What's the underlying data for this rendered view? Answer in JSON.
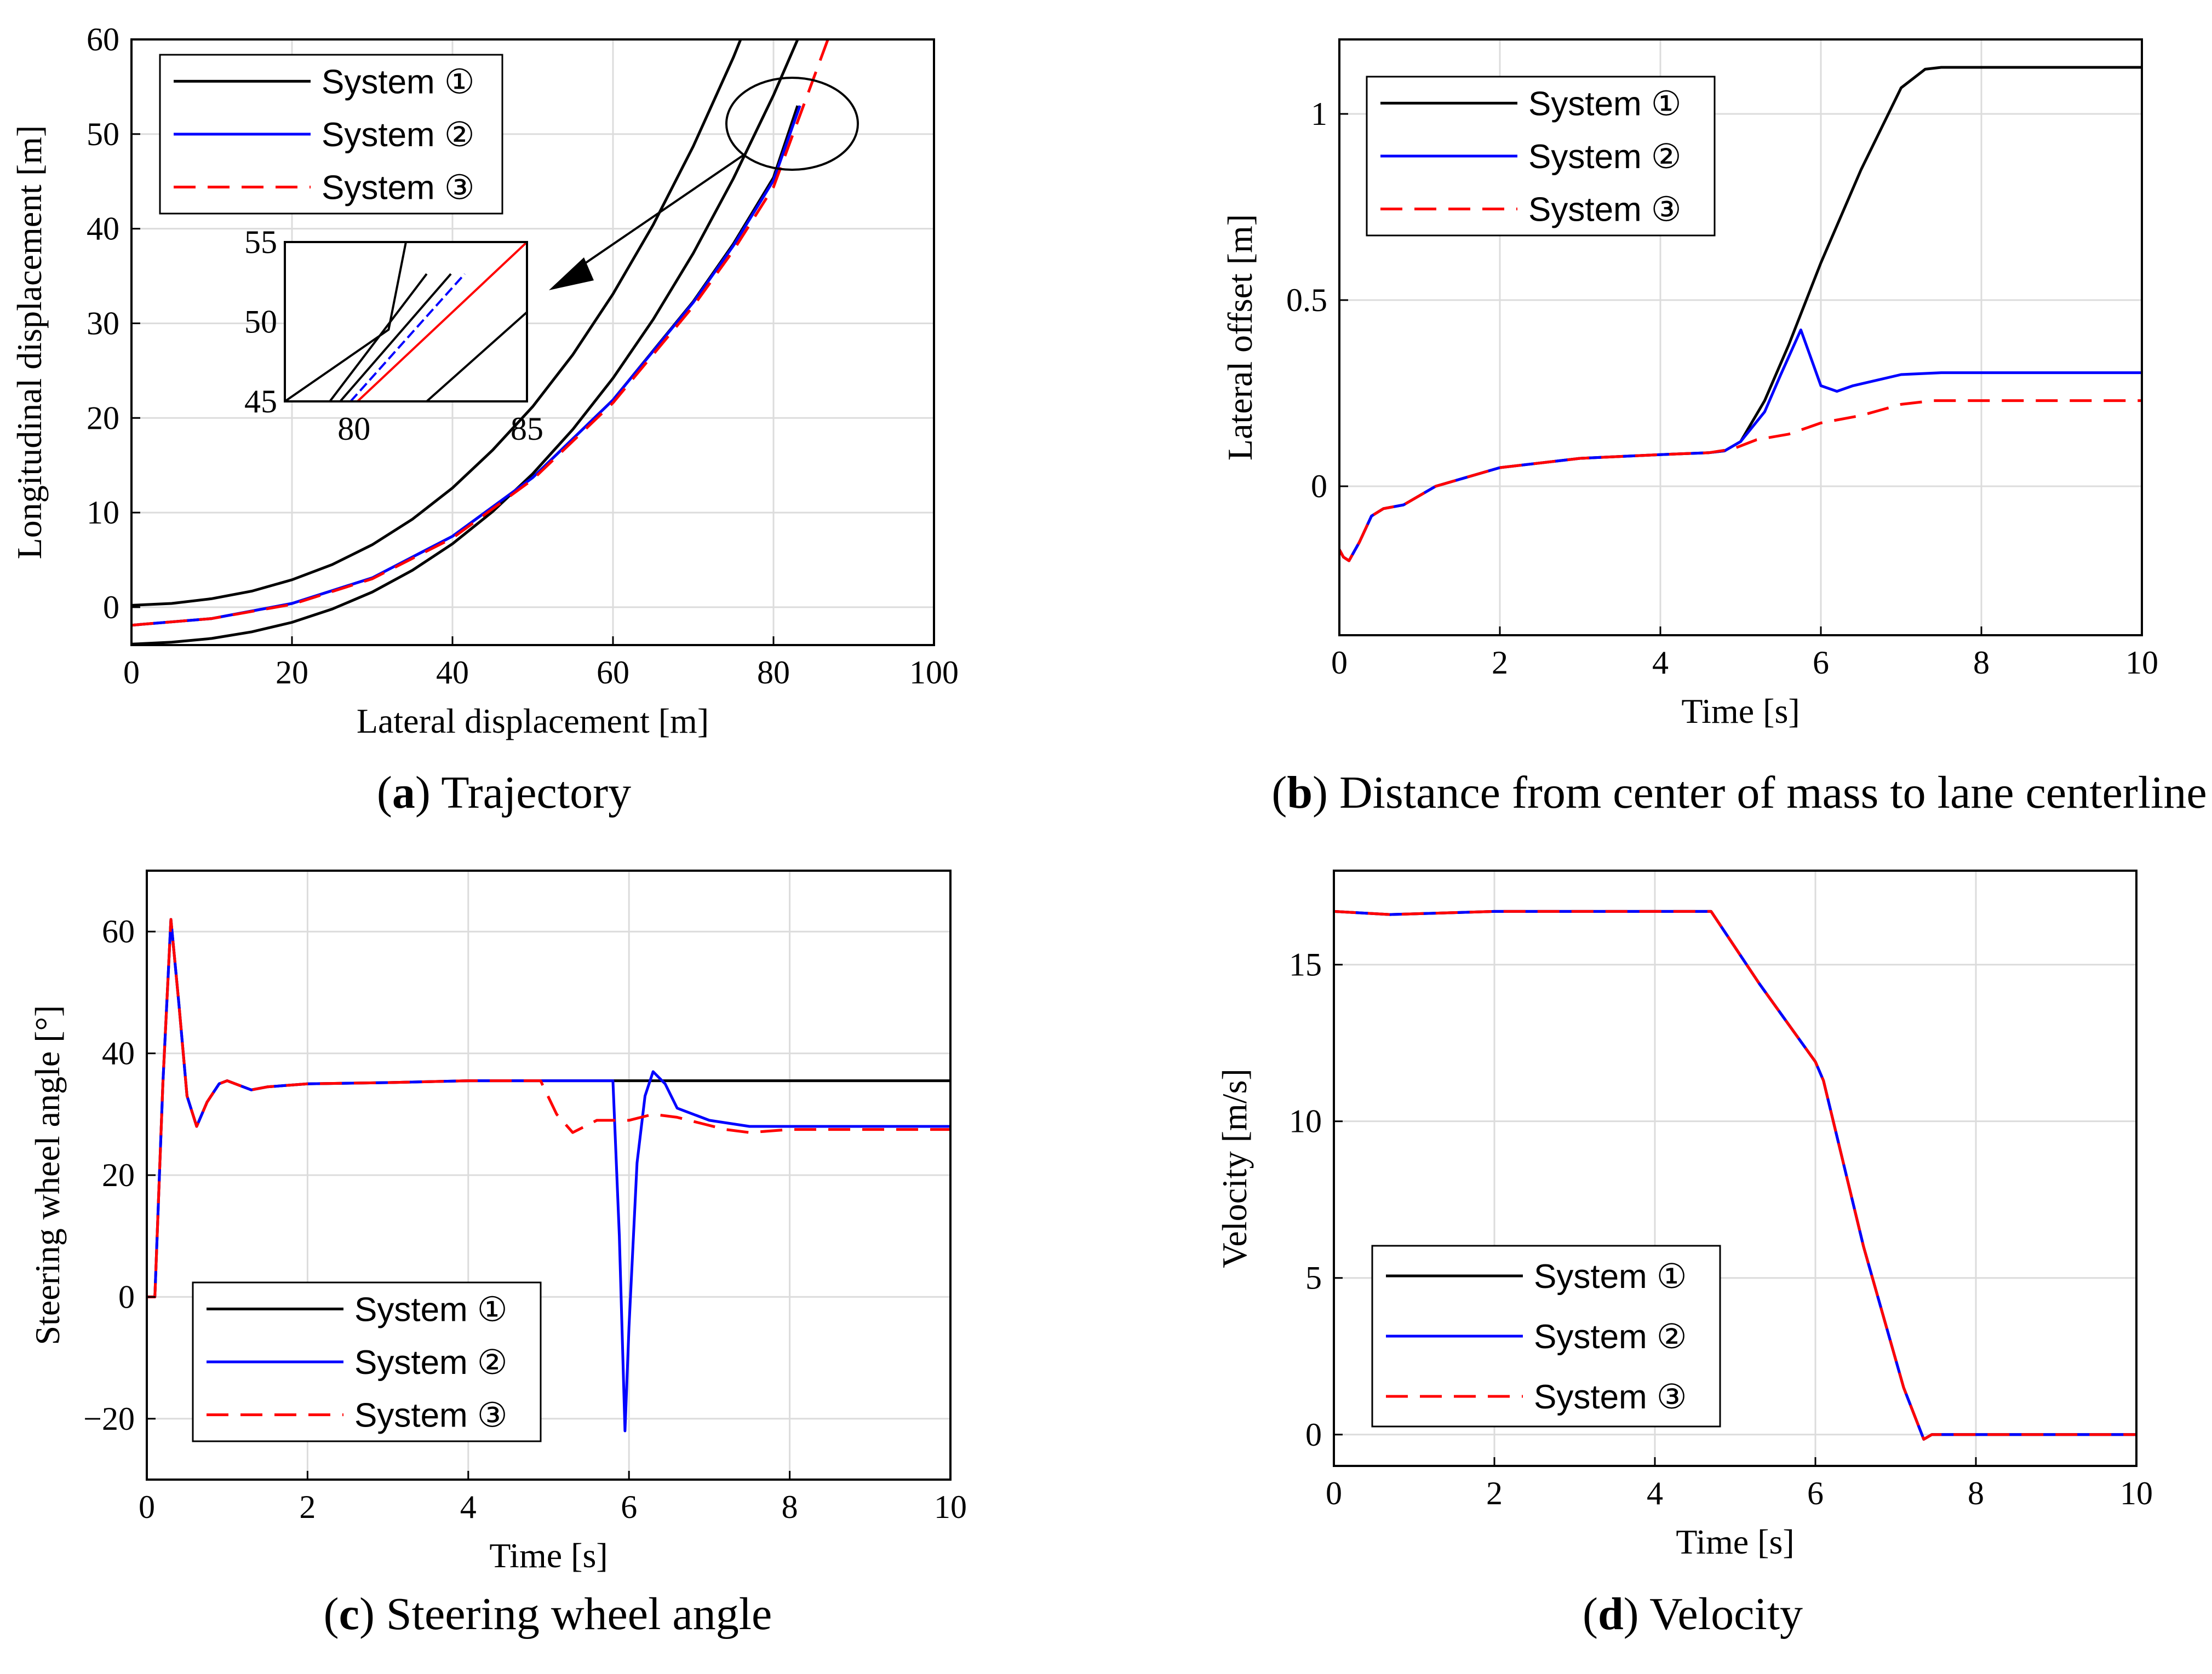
{
  "colors": {
    "system1": "#000000",
    "system2": "#0000ff",
    "system3": "#ff0000",
    "grid": "#dcdcdc"
  },
  "legend_entries": [
    "System ①",
    "System ②",
    "System ③"
  ],
  "chart_data": [
    {
      "id": "a",
      "type": "line",
      "caption_letter": "a",
      "caption_text": "Trajectory",
      "xlabel": "Lateral displacement [m]",
      "ylabel": "Longitudinal displacement [m]",
      "xlim": [
        0,
        100
      ],
      "ylim": [
        -4,
        60
      ],
      "xticks": [
        0,
        20,
        40,
        60,
        80,
        100
      ],
      "yticks": [
        0,
        10,
        20,
        30,
        40,
        50,
        60
      ],
      "grid": true,
      "legend_position": "top-left",
      "lane_boundaries": [
        {
          "name": "lane-left-edge",
          "x": [
            0,
            5,
            10,
            15,
            20,
            25,
            30,
            35,
            40,
            45,
            50,
            55,
            60,
            65,
            70,
            75,
            80,
            85
          ],
          "y": [
            0.2,
            0.4,
            0.9,
            1.7,
            2.9,
            4.5,
            6.6,
            9.3,
            12.6,
            16.6,
            21.2,
            26.7,
            33.1,
            40.4,
            48.7,
            58.1,
            68.6,
            80.3
          ]
        },
        {
          "name": "lane-right-edge",
          "x": [
            0,
            5,
            10,
            15,
            20,
            25,
            30,
            35,
            40,
            45,
            50,
            55,
            60,
            65,
            70,
            75,
            80,
            85,
            90
          ],
          "y": [
            -3.9,
            -3.7,
            -3.3,
            -2.6,
            -1.6,
            -0.2,
            1.6,
            3.9,
            6.7,
            10.1,
            14.1,
            18.8,
            24.2,
            30.4,
            37.4,
            45.3,
            54.1,
            63.9,
            74.7
          ]
        }
      ],
      "series": [
        {
          "name": "System ①",
          "x": [
            0,
            10,
            20,
            30,
            40,
            50,
            60,
            70,
            75,
            80,
            83
          ],
          "y": [
            -1.9,
            -1.2,
            0.4,
            3.1,
            7.5,
            13.7,
            21.9,
            32.3,
            38.4,
            45.4,
            53.0
          ]
        },
        {
          "name": "System ②",
          "x": [
            0,
            10,
            20,
            30,
            40,
            50,
            60,
            70,
            75,
            80,
            83.3
          ],
          "y": [
            -1.9,
            -1.2,
            0.4,
            3.1,
            7.5,
            13.7,
            21.9,
            32.2,
            38.2,
            45.1,
            53.0
          ]
        },
        {
          "name": "System ③",
          "x": [
            0,
            10,
            20,
            30,
            40,
            50,
            60,
            70,
            75,
            80,
            87
          ],
          "y": [
            -1.9,
            -1.2,
            0.3,
            3.0,
            7.3,
            13.5,
            21.6,
            31.8,
            37.7,
            44.4,
            60.5
          ]
        }
      ],
      "inset": {
        "xlim": [
          78,
          85
        ],
        "ylim": [
          45,
          55
        ],
        "xticks": [
          80,
          85
        ],
        "yticks": [
          45,
          50,
          55
        ],
        "lines": [
          {
            "name": "lane-left-edge",
            "x": [
              78,
              81,
              81.5
            ],
            "y": [
              45,
              49.5,
              55
            ]
          },
          {
            "name": "lane-left-edge-2",
            "x": [
              79.3,
              82.1
            ],
            "y": [
              45,
              53.0
            ]
          },
          {
            "name": "lane-right-edge",
            "x": [
              82.1,
              85
            ],
            "y": [
              45,
              50.6
            ]
          },
          {
            "name": "System ①",
            "x": [
              79.6,
              82.8
            ],
            "y": [
              45,
              53.0
            ]
          },
          {
            "name": "System ②",
            "x": [
              79.9,
              83.2
            ],
            "y": [
              45,
              53.0
            ]
          },
          {
            "name": "System ③",
            "x": [
              80.1,
              85
            ],
            "y": [
              45,
              55
            ]
          }
        ]
      }
    },
    {
      "id": "b",
      "type": "line",
      "caption_letter": "b",
      "caption_text": "Distance from center of mass to lane centerline",
      "xlabel": "Time [s]",
      "ylabel": "Lateral offset [m]",
      "xlim": [
        0,
        10
      ],
      "ylim": [
        -0.4,
        1.2
      ],
      "xticks": [
        0,
        2,
        4,
        6,
        8,
        10
      ],
      "yticks": [
        0,
        0.5,
        1
      ],
      "ytick_labels": [
        "0",
        "0.5",
        "1"
      ],
      "grid": true,
      "legend_position": "top-left",
      "series": [
        {
          "name": "System ①",
          "x": [
            0,
            0.05,
            0.12,
            0.25,
            0.4,
            0.55,
            0.8,
            1.2,
            2,
            3,
            4,
            4.6,
            4.8,
            5.0,
            5.3,
            5.6,
            6.0,
            6.5,
            7.0,
            7.3,
            7.5,
            8,
            10
          ],
          "y": [
            -0.17,
            -0.19,
            -0.2,
            -0.15,
            -0.08,
            -0.06,
            -0.05,
            0.0,
            0.05,
            0.075,
            0.085,
            0.09,
            0.095,
            0.12,
            0.23,
            0.38,
            0.6,
            0.85,
            1.07,
            1.12,
            1.125,
            1.125,
            1.125
          ]
        },
        {
          "name": "System ②",
          "x": [
            0,
            0.05,
            0.12,
            0.25,
            0.4,
            0.55,
            0.8,
            1.2,
            2,
            3,
            4,
            4.6,
            4.8,
            5.0,
            5.3,
            5.5,
            5.75,
            5.9,
            6.0,
            6.2,
            6.4,
            7.0,
            7.5,
            10
          ],
          "y": [
            -0.17,
            -0.19,
            -0.2,
            -0.15,
            -0.08,
            -0.06,
            -0.05,
            0.0,
            0.05,
            0.075,
            0.085,
            0.09,
            0.095,
            0.12,
            0.2,
            0.3,
            0.42,
            0.33,
            0.27,
            0.255,
            0.27,
            0.3,
            0.305,
            0.305
          ]
        },
        {
          "name": "System ③",
          "x": [
            0,
            0.05,
            0.12,
            0.25,
            0.4,
            0.55,
            0.8,
            1.2,
            2,
            3,
            4,
            4.6,
            4.9,
            5.2,
            5.6,
            6.0,
            6.5,
            7.0,
            7.4,
            8,
            10
          ],
          "y": [
            -0.17,
            -0.19,
            -0.2,
            -0.15,
            -0.08,
            -0.06,
            -0.05,
            0.0,
            0.05,
            0.075,
            0.085,
            0.09,
            0.1,
            0.125,
            0.14,
            0.17,
            0.19,
            0.22,
            0.23,
            0.23,
            0.23
          ]
        }
      ]
    },
    {
      "id": "c",
      "type": "line",
      "caption_letter": "c",
      "caption_text": "Steering wheel angle",
      "xlabel": "Time [s]",
      "ylabel": "Steering wheel angle [°]",
      "xlim": [
        0,
        10
      ],
      "ylim": [
        -30,
        70
      ],
      "xticks": [
        0,
        2,
        4,
        6,
        8,
        10
      ],
      "yticks": [
        -20,
        0,
        20,
        40,
        60
      ],
      "ytick_labels": [
        "−20",
        "0",
        "20",
        "40",
        "60"
      ],
      "grid": true,
      "legend_position": "bottom-left",
      "series": [
        {
          "name": "System ①",
          "x": [
            0,
            0.1,
            0.2,
            0.3,
            0.4,
            0.5,
            0.62,
            0.75,
            0.9,
            1.0,
            1.1,
            1.3,
            1.5,
            2,
            3,
            4,
            5,
            10
          ],
          "y": [
            0,
            0,
            35,
            62,
            48,
            33,
            28,
            32,
            35,
            35.5,
            35,
            34,
            34.5,
            35,
            35.2,
            35.5,
            35.5,
            35.5
          ]
        },
        {
          "name": "System ②",
          "x": [
            0,
            0.1,
            0.2,
            0.3,
            0.4,
            0.5,
            0.62,
            0.75,
            0.9,
            1.0,
            1.1,
            1.3,
            1.5,
            2,
            3,
            4,
            5,
            5.8,
            5.88,
            5.95,
            6.0,
            6.1,
            6.2,
            6.3,
            6.45,
            6.6,
            7.0,
            7.5,
            8,
            10
          ],
          "y": [
            0,
            0,
            35,
            62,
            48,
            33,
            28,
            32,
            35,
            35.5,
            35,
            34,
            34.5,
            35,
            35.2,
            35.5,
            35.5,
            35.5,
            10,
            -22,
            -5,
            22,
            33,
            37,
            35,
            31,
            29,
            28,
            28,
            28
          ]
        },
        {
          "name": "System ③",
          "x": [
            0,
            0.1,
            0.2,
            0.3,
            0.4,
            0.5,
            0.62,
            0.75,
            0.9,
            1.0,
            1.1,
            1.3,
            1.5,
            2,
            3,
            4,
            4.9,
            5.1,
            5.3,
            5.6,
            6.0,
            6.3,
            6.6,
            6.9,
            7.2,
            7.5,
            8,
            10
          ],
          "y": [
            0,
            0,
            35,
            62,
            48,
            33,
            28,
            32,
            35,
            35.5,
            35,
            34,
            34.5,
            35,
            35.2,
            35.5,
            35.5,
            30,
            27,
            29,
            29,
            30,
            29.5,
            28.5,
            27.5,
            27,
            27.5,
            27.5
          ]
        }
      ]
    },
    {
      "id": "d",
      "type": "line",
      "caption_letter": "d",
      "caption_text": "Velocity",
      "xlabel": "Time [s]",
      "ylabel": "Velocity [m/s]",
      "xlim": [
        0,
        10
      ],
      "ylim": [
        -1,
        18
      ],
      "xticks": [
        0,
        2,
        4,
        6,
        8,
        10
      ],
      "yticks": [
        0,
        5,
        10,
        15
      ],
      "grid": true,
      "legend_position": "bottom-left",
      "series": [
        {
          "name": "System ①",
          "x": [
            0,
            0.7,
            2,
            4,
            4.7,
            5.3,
            6.0,
            6.1,
            6.6,
            7.1,
            7.35,
            7.45,
            7.7,
            10
          ],
          "y": [
            16.7,
            16.6,
            16.7,
            16.7,
            16.7,
            14.4,
            11.9,
            11.3,
            6.0,
            1.5,
            -0.15,
            0.0,
            0.0,
            0.0
          ]
        },
        {
          "name": "System ②",
          "x": [
            0,
            0.7,
            2,
            4,
            4.7,
            5.3,
            6.0,
            6.1,
            6.6,
            7.1,
            7.35,
            7.45,
            7.7,
            10
          ],
          "y": [
            16.7,
            16.6,
            16.7,
            16.7,
            16.7,
            14.4,
            11.9,
            11.3,
            6.0,
            1.5,
            -0.15,
            0.0,
            0.0,
            0.0
          ]
        },
        {
          "name": "System ③",
          "x": [
            0,
            0.7,
            2,
            4,
            4.7,
            5.3,
            6.0,
            6.1,
            6.6,
            7.1,
            7.35,
            7.45,
            7.7,
            10
          ],
          "y": [
            16.7,
            16.6,
            16.7,
            16.7,
            16.7,
            14.4,
            11.9,
            11.3,
            6.0,
            1.5,
            -0.15,
            0.0,
            0.0,
            0.0
          ]
        }
      ]
    }
  ]
}
